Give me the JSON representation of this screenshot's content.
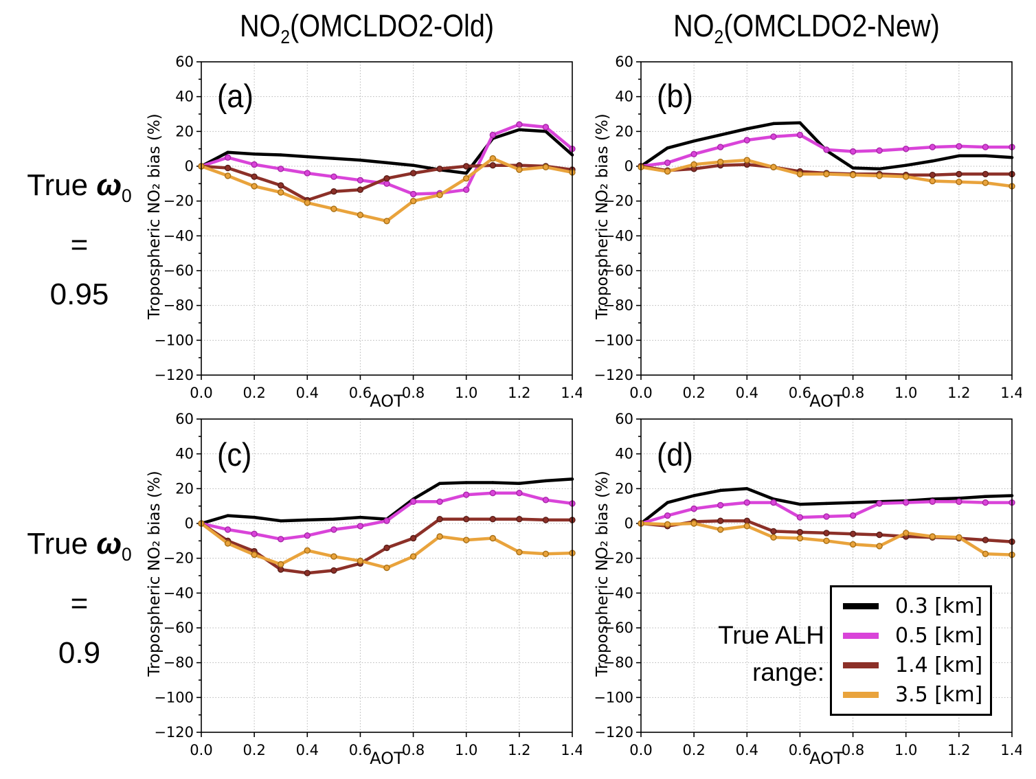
{
  "titles": {
    "left": {
      "base": "NO",
      "sub": "2",
      "suffix": "(OMCLDO2-Old)"
    },
    "right": {
      "base": "NO",
      "sub": "2",
      "suffix": "(OMCLDO2-New)"
    }
  },
  "row_labels": [
    {
      "prefix": "True",
      "symbol": "ω",
      "symbol_sub": "0",
      "eq": "=",
      "value": "0.95"
    },
    {
      "prefix": "True",
      "symbol": "ω",
      "symbol_sub": "0",
      "eq": "=",
      "value": "0.9"
    }
  ],
  "legend": {
    "title_line1": "True ALH",
    "title_line2": "range:",
    "entries": [
      {
        "label": "0.3 [km]",
        "color": "#000000"
      },
      {
        "label": "0.5 [km]",
        "color": "#d944d9"
      },
      {
        "label": "1.4 [km]",
        "color": "#8c3028"
      },
      {
        "label": "3.5 [km]",
        "color": "#e9a33c"
      }
    ]
  },
  "chart_data": [
    {
      "label": "(a)",
      "type": "line",
      "xlabel": "AOT",
      "ylabel": "Tropospheric NO₂ bias (%)",
      "xlim": [
        0,
        1.4
      ],
      "ylim": [
        -120,
        60
      ],
      "grid": true,
      "xticks": [
        0,
        0.2,
        0.4,
        0.6,
        0.8,
        1.0,
        1.2,
        1.4
      ],
      "xtick_labels": [
        "0.0",
        "0.2",
        "0.4",
        "0.6",
        "0.8",
        "1.0",
        "1.2",
        "1.4"
      ],
      "yticks": [
        60,
        40,
        20,
        0,
        -20,
        -40,
        -60,
        -80,
        -100,
        -120
      ],
      "ytick_labels": [
        "60",
        "40",
        "20",
        "0",
        "−20",
        "−40",
        "−60",
        "−80",
        "−100",
        "−120"
      ],
      "x": [
        0,
        0.1,
        0.2,
        0.3,
        0.4,
        0.5,
        0.6,
        0.7,
        0.8,
        0.9,
        1.0,
        1.1,
        1.2,
        1.3,
        1.4
      ],
      "series": [
        {
          "name": "0.3 [km]",
          "color": "#000000",
          "edge": "#000000",
          "marker": "dot",
          "values": [
            0,
            8,
            7,
            6.5,
            5.5,
            4.5,
            3.5,
            2,
            0.5,
            -2,
            -4,
            16,
            21,
            20,
            6.5
          ]
        },
        {
          "name": "0.5 [km]",
          "color": "#d944d9",
          "edge": "#a826a8",
          "marker": "circle",
          "values": [
            0,
            5,
            1,
            -1.5,
            -4,
            -6,
            -8,
            -10,
            -16,
            -15.5,
            -13.5,
            18,
            24,
            22.5,
            10
          ]
        },
        {
          "name": "1.4 [km]",
          "color": "#8c3028",
          "edge": "#5a1d18",
          "marker": "circle",
          "values": [
            0,
            -1,
            -6,
            -11,
            -19.5,
            -14.5,
            -13.5,
            -7,
            -4,
            -1.5,
            0,
            0.5,
            0.5,
            0,
            -2
          ]
        },
        {
          "name": "3.5 [km]",
          "color": "#e9a33c",
          "edge": "#a86f14",
          "marker": "circle",
          "values": [
            0,
            -5.5,
            -11.5,
            -15,
            -21,
            -24.5,
            -28,
            -31.5,
            -20,
            -16.5,
            -7,
            4.5,
            -2,
            -0.5,
            -3.5
          ]
        }
      ]
    },
    {
      "label": "(b)",
      "type": "line",
      "xlabel": "AOT",
      "ylabel": "Tropospheric NO₂ bias (%)",
      "xlim": [
        0,
        1.4
      ],
      "ylim": [
        -120,
        60
      ],
      "grid": true,
      "xticks": [
        0,
        0.2,
        0.4,
        0.6,
        0.8,
        1.0,
        1.2,
        1.4
      ],
      "xtick_labels": [
        "0.0",
        "0.2",
        "0.4",
        "0.6",
        "0.8",
        "1.0",
        "1.2",
        "1.4"
      ],
      "yticks": [
        60,
        40,
        20,
        0,
        -20,
        -40,
        -60,
        -80,
        -100,
        -120
      ],
      "ytick_labels": [
        "60",
        "40",
        "20",
        "0",
        "−20",
        "−40",
        "−60",
        "−80",
        "−100",
        "−120"
      ],
      "x": [
        0,
        0.1,
        0.2,
        0.3,
        0.4,
        0.5,
        0.6,
        0.7,
        0.8,
        0.9,
        1.0,
        1.1,
        1.2,
        1.3,
        1.4
      ],
      "series": [
        {
          "name": "0.3 [km]",
          "color": "#000000",
          "edge": "#000000",
          "marker": "dot",
          "values": [
            0,
            10.5,
            14.5,
            18,
            21.5,
            24.5,
            25,
            9,
            -1,
            -1.5,
            0.5,
            3,
            6,
            6,
            5
          ]
        },
        {
          "name": "0.5 [km]",
          "color": "#d944d9",
          "edge": "#a826a8",
          "marker": "circle",
          "values": [
            0,
            2,
            7,
            11,
            15,
            17,
            18,
            9.5,
            8.5,
            9,
            10,
            11,
            11.5,
            11,
            11
          ]
        },
        {
          "name": "1.4 [km]",
          "color": "#8c3028",
          "edge": "#5a1d18",
          "marker": "circle",
          "values": [
            0,
            -2.5,
            -1.5,
            0.5,
            1,
            -0.5,
            -3,
            -4,
            -4.5,
            -4.5,
            -5,
            -5,
            -4.5,
            -4.5,
            -4.5
          ]
        },
        {
          "name": "3.5 [km]",
          "color": "#e9a33c",
          "edge": "#a86f14",
          "marker": "circle",
          "values": [
            -0.5,
            -3,
            1,
            2.5,
            3.5,
            -0.5,
            -4.5,
            -4.5,
            -5,
            -5.5,
            -6,
            -8.5,
            -9,
            -9.5,
            -11.5
          ]
        }
      ]
    },
    {
      "label": "(c)",
      "type": "line",
      "xlabel": "AOT",
      "ylabel": "Tropospheric NO₂ bias (%)",
      "xlim": [
        0,
        1.4
      ],
      "ylim": [
        -120,
        60
      ],
      "grid": true,
      "xticks": [
        0,
        0.2,
        0.4,
        0.6,
        0.8,
        1.0,
        1.2,
        1.4
      ],
      "xtick_labels": [
        "0.0",
        "0.2",
        "0.4",
        "0.6",
        "0.8",
        "1.0",
        "1.2",
        "1.4"
      ],
      "yticks": [
        60,
        40,
        20,
        0,
        -20,
        -40,
        -60,
        -80,
        -100,
        -120
      ],
      "ytick_labels": [
        "60",
        "40",
        "20",
        "0",
        "−20",
        "−40",
        "−60",
        "−80",
        "−100",
        "−120"
      ],
      "x": [
        0,
        0.1,
        0.2,
        0.3,
        0.4,
        0.5,
        0.6,
        0.7,
        0.8,
        0.9,
        1.0,
        1.1,
        1.2,
        1.3,
        1.4
      ],
      "series": [
        {
          "name": "0.3 [km]",
          "color": "#000000",
          "edge": "#000000",
          "marker": "dot",
          "values": [
            0,
            4.5,
            3.5,
            1.5,
            2,
            2.5,
            3.5,
            2.5,
            14,
            23,
            23.5,
            23.5,
            23,
            24.5,
            25.5
          ]
        },
        {
          "name": "0.5 [km]",
          "color": "#d944d9",
          "edge": "#a826a8",
          "marker": "circle",
          "values": [
            0,
            -3.5,
            -6,
            -9,
            -7,
            -3.5,
            -1.5,
            1.5,
            12.5,
            12.5,
            16.5,
            17.5,
            17.5,
            13.5,
            11.5
          ]
        },
        {
          "name": "1.4 [km]",
          "color": "#8c3028",
          "edge": "#5a1d18",
          "marker": "circle",
          "values": [
            0,
            -10,
            -16,
            -26.5,
            -28.5,
            -27,
            -23,
            -14,
            -8.5,
            2.5,
            2.5,
            2.5,
            2.5,
            2,
            2
          ]
        },
        {
          "name": "3.5 [km]",
          "color": "#e9a33c",
          "edge": "#a86f14",
          "marker": "circle",
          "values": [
            0,
            -11.5,
            -18,
            -23.5,
            -15.5,
            -19,
            -21.5,
            -25.5,
            -19,
            -7.5,
            -9.5,
            -8.5,
            -16.5,
            -17.5,
            -17
          ]
        }
      ]
    },
    {
      "label": "(d)",
      "type": "line",
      "xlabel": "AOT",
      "ylabel": "Tropospheric NO₂ bias (%)",
      "xlim": [
        0,
        1.4
      ],
      "ylim": [
        -120,
        60
      ],
      "grid": true,
      "xticks": [
        0,
        0.2,
        0.4,
        0.6,
        0.8,
        1.0,
        1.2,
        1.4
      ],
      "xtick_labels": [
        "0.0",
        "0.2",
        "0.4",
        "0.6",
        "0.8",
        "1.0",
        "1.2",
        "1.4"
      ],
      "yticks": [
        60,
        40,
        20,
        0,
        -20,
        -40,
        -60,
        -80,
        -100,
        -120
      ],
      "ytick_labels": [
        "60",
        "40",
        "20",
        "0",
        "−20",
        "−40",
        "−60",
        "−80",
        "−100",
        "−120"
      ],
      "x": [
        0,
        0.1,
        0.2,
        0.3,
        0.4,
        0.5,
        0.6,
        0.7,
        0.8,
        0.9,
        1.0,
        1.1,
        1.2,
        1.3,
        1.4
      ],
      "series": [
        {
          "name": "0.3 [km]",
          "color": "#000000",
          "edge": "#000000",
          "marker": "dot",
          "values": [
            0,
            12,
            16,
            19,
            20,
            14,
            11,
            11.5,
            12,
            12.5,
            13,
            14,
            14.5,
            15.5,
            16
          ]
        },
        {
          "name": "0.5 [km]",
          "color": "#d944d9",
          "edge": "#a826a8",
          "marker": "circle",
          "values": [
            0,
            4.5,
            8.5,
            10.5,
            12,
            12,
            3.5,
            4,
            4.5,
            11.5,
            12,
            12.5,
            12.5,
            12,
            12
          ]
        },
        {
          "name": "1.4 [km]",
          "color": "#8c3028",
          "edge": "#5a1d18",
          "marker": "circle",
          "values": [
            0,
            -1.5,
            1,
            1.5,
            1.5,
            -4.5,
            -5,
            -5.5,
            -6,
            -6.5,
            -7.5,
            -8,
            -8.5,
            -9.5,
            -10.5
          ]
        },
        {
          "name": "3.5 [km]",
          "color": "#e9a33c",
          "edge": "#a86f14",
          "marker": "circle",
          "values": [
            0,
            -0.5,
            0,
            -3.5,
            -1.5,
            -8,
            -8.5,
            -10,
            -12,
            -13,
            -5.5,
            -7.5,
            -8,
            -17.5,
            -18
          ]
        }
      ]
    }
  ]
}
